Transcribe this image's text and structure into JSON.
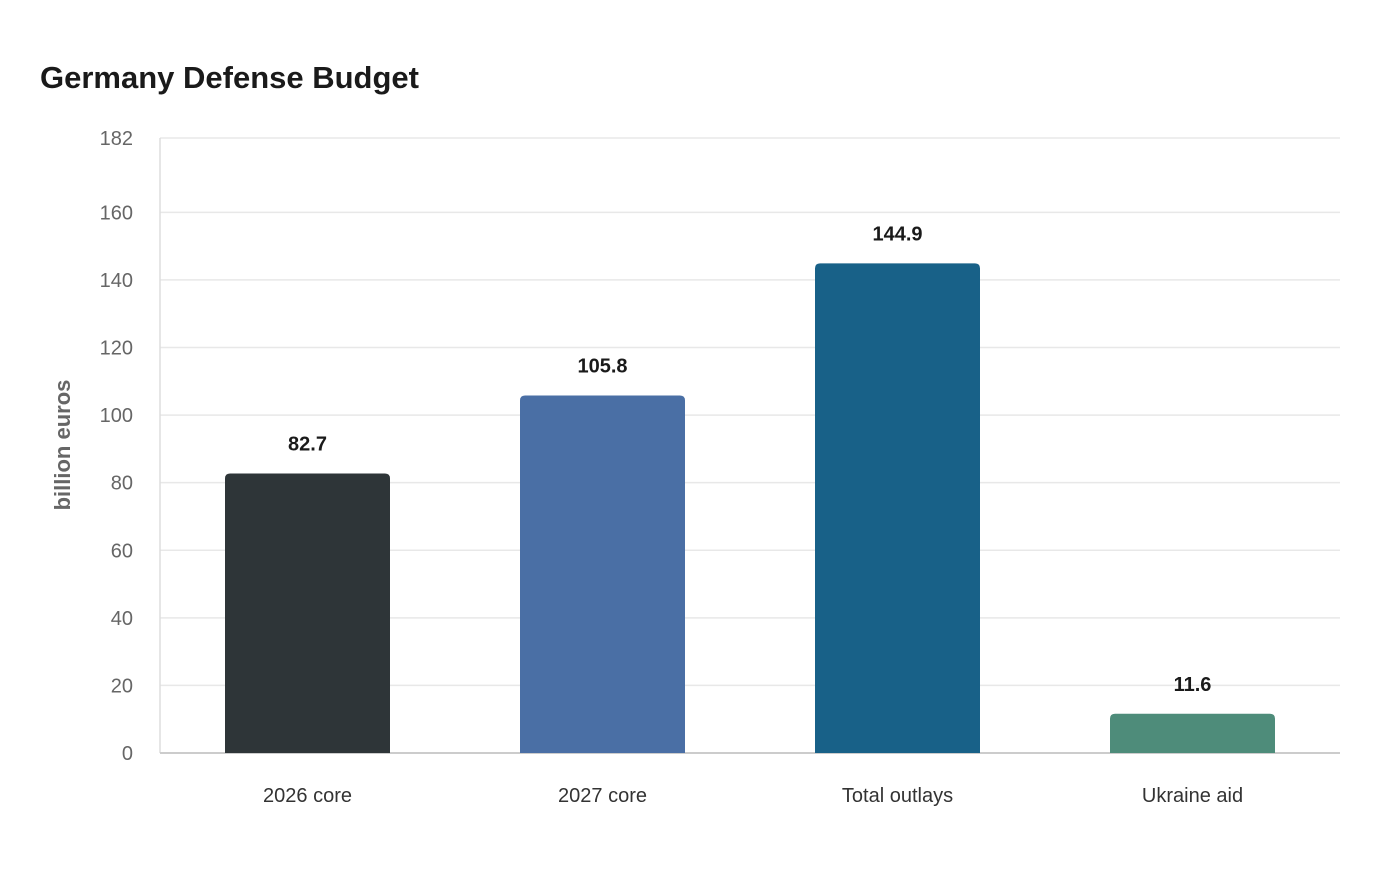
{
  "chart_data": {
    "type": "bar",
    "title": "Germany Defense Budget",
    "xlabel": "",
    "ylabel": "billion euros",
    "categories": [
      "2026 core",
      "2027 core",
      "Total outlays",
      "Ukraine aid"
    ],
    "values": [
      82.7,
      105.8,
      144.9,
      11.6
    ],
    "value_labels": [
      "82.7",
      "105.8",
      "144.9",
      "11.6"
    ],
    "colors": [
      "#2e3538",
      "#4a6fa5",
      "#186188",
      "#4e8c7a"
    ],
    "ylim": [
      0,
      182
    ],
    "yticks": [
      0,
      20,
      40,
      60,
      80,
      100,
      120,
      140,
      160,
      182
    ],
    "grid": true,
    "legend": "none"
  }
}
